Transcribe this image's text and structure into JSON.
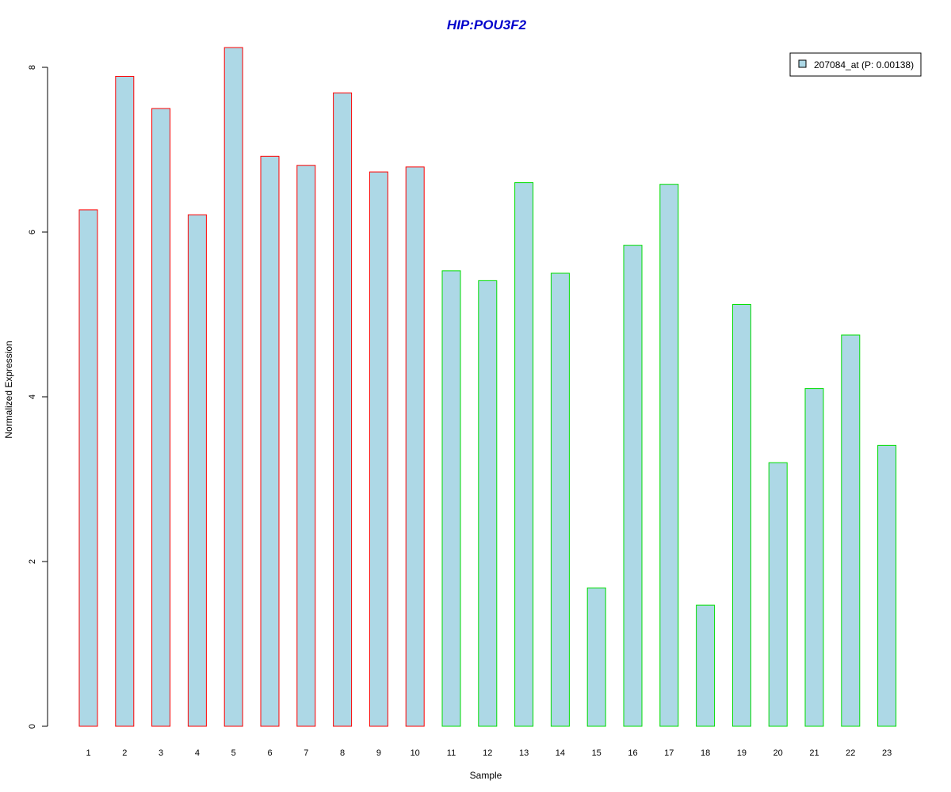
{
  "chart_data": {
    "type": "bar",
    "title": "HIP:POU3F2",
    "xlabel": "Sample",
    "ylabel": "Normalized Expression",
    "ylim": [
      0,
      8.25
    ],
    "yticks": [
      0,
      2,
      4,
      6,
      8
    ],
    "categories": [
      "1",
      "2",
      "3",
      "4",
      "5",
      "6",
      "7",
      "8",
      "9",
      "10",
      "11",
      "12",
      "13",
      "14",
      "15",
      "16",
      "17",
      "18",
      "19",
      "20",
      "21",
      "22",
      "23"
    ],
    "series": [
      {
        "name": "207084_at (P: 0.00138)",
        "values": [
          6.27,
          7.89,
          7.5,
          6.21,
          8.24,
          6.92,
          6.81,
          7.69,
          6.73,
          6.79,
          5.53,
          5.41,
          6.6,
          5.5,
          1.68,
          5.84,
          6.58,
          1.47,
          5.12,
          3.2,
          4.1,
          4.75,
          3.41
        ]
      }
    ],
    "group_border_colors": [
      "#ff0000",
      "#ff0000",
      "#ff0000",
      "#ff0000",
      "#ff0000",
      "#ff0000",
      "#ff0000",
      "#ff0000",
      "#ff0000",
      "#ff0000",
      "#00dd00",
      "#00dd00",
      "#00dd00",
      "#00dd00",
      "#00dd00",
      "#00dd00",
      "#00dd00",
      "#00dd00",
      "#00dd00",
      "#00dd00",
      "#00dd00",
      "#00dd00",
      "#00dd00"
    ],
    "fill_color": "#add8e6",
    "title_color": "#0000cc",
    "legend_position": "top-right",
    "grid": false
  }
}
